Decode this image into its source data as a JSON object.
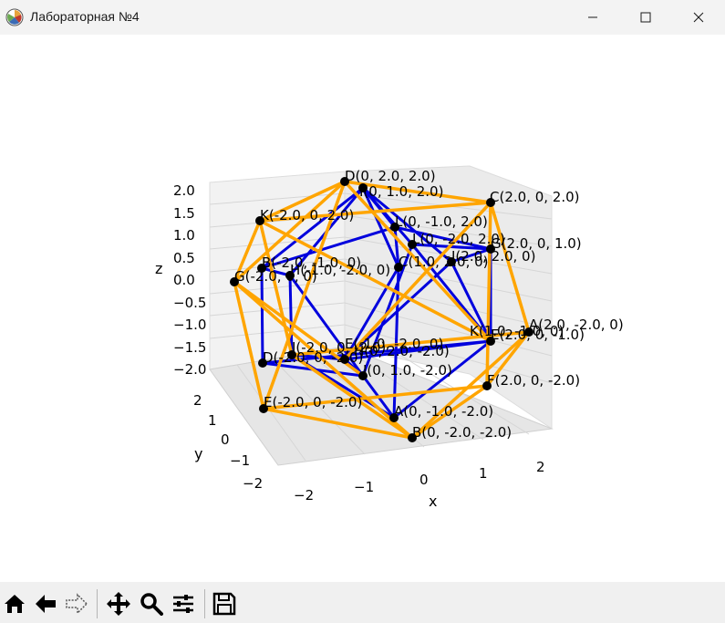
{
  "window": {
    "title": "Лабораторная №4",
    "icon": "matplotlib-figure-icon",
    "controls": [
      "minimize",
      "maximize",
      "close"
    ]
  },
  "toolbar": {
    "buttons": [
      "home-icon",
      "back-icon",
      "forward-icon",
      "pan-icon",
      "zoom-icon",
      "configure-subplots-icon",
      "save-icon"
    ]
  },
  "colors": {
    "edge_inner": "#0000dd",
    "edge_outer": "#ffa500",
    "point": "#000000"
  },
  "plot": {
    "x_label": "x",
    "y_label": "y",
    "z_label": "z",
    "x_ticks": [
      "−2",
      "−1",
      "0",
      "1",
      "2"
    ],
    "y_ticks": [
      "2",
      "1",
      "0",
      "−1",
      "−2"
    ],
    "z_ticks": [
      "2.0",
      "1.5",
      "1.0",
      "0.5",
      "0.0",
      "−0.5",
      "−1.0",
      "−1.5",
      "−2.0"
    ]
  },
  "points": [
    {
      "id": "D",
      "label": "D(0, 2.0, 2.0)"
    },
    {
      "id": "I1",
      "label": "I(0, 1.0, 2.0)"
    },
    {
      "id": "C1",
      "label": "C(2.0, 0, 2.0)"
    },
    {
      "id": "K",
      "label": "K(-2.0, 0, 2.0)"
    },
    {
      "id": "L1",
      "label": "L(0, -1.0, 2.0)"
    },
    {
      "id": "L2",
      "label": "L(0, -2.0, 2.0)"
    },
    {
      "id": "G1",
      "label": "G(2.0, 0, 1.0)"
    },
    {
      "id": "J1",
      "label": "J(2.0, 2.0, 0)"
    },
    {
      "id": "B1",
      "label": "B(-2.0, -1.0, 0)"
    },
    {
      "id": "H1",
      "label": "H(-1.0, -2.0, 0)"
    },
    {
      "id": "C2",
      "label": "C(1.0, 2.0, 0)"
    },
    {
      "id": "G2",
      "label": "G(-2.0, 0, 0)"
    },
    {
      "id": "A1",
      "label": "A(2.0, -2.0, 0)"
    },
    {
      "id": "K2",
      "label": "K(1.0, -1.0, 0)"
    },
    {
      "id": "E2",
      "label": "E(2.0, 0, -1.0)"
    },
    {
      "id": "I2",
      "label": "I(-2.0, 0, -2.0)"
    },
    {
      "id": "E1",
      "label": "E(-1.0, -2.0, 0)"
    },
    {
      "id": "D2",
      "label": "D(-2.0, 0, -2.0)"
    },
    {
      "id": "H2",
      "label": "H(0, 2.0, -2.0)"
    },
    {
      "id": "J2",
      "label": "J(0, 1.0, -2.0)"
    },
    {
      "id": "F",
      "label": "F(2.0, 0, -2.0)"
    },
    {
      "id": "E3",
      "label": "E(-2.0, 0, -2.0)"
    },
    {
      "id": "A2",
      "label": "A(0, -1.0, -2.0)"
    },
    {
      "id": "B2",
      "label": "B(0, -2.0, -2.0)"
    }
  ]
}
